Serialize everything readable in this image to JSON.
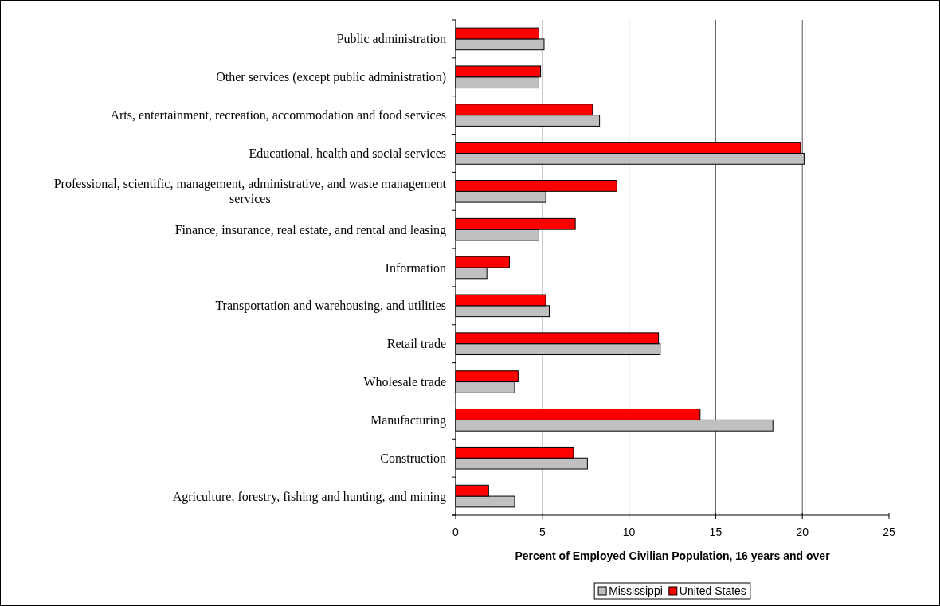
{
  "chart_data": {
    "type": "bar",
    "orientation": "horizontal",
    "categories": [
      "Public administration",
      "Other services (except public administration)",
      "Arts, entertainment, recreation, accommodation and food services",
      "Educational, health and social services",
      "Professional, scientific, management, administrative, and waste management services",
      "Finance, insurance, real estate, and rental and leasing",
      "Information",
      "Transportation and warehousing, and utilities",
      "Retail trade",
      "Wholesale trade",
      "Manufacturing",
      "Construction",
      "Agriculture, forestry, fishing and hunting, and mining"
    ],
    "series": [
      {
        "name": "Mississippi",
        "color": "#c0c0c0",
        "values": [
          5.1,
          4.8,
          8.3,
          20.1,
          5.2,
          4.8,
          1.8,
          5.4,
          11.8,
          3.4,
          18.3,
          7.6,
          3.4
        ]
      },
      {
        "name": "United States",
        "color": "#ff0000",
        "values": [
          4.8,
          4.9,
          7.9,
          19.9,
          9.3,
          6.9,
          3.1,
          5.2,
          11.7,
          3.6,
          14.1,
          6.8,
          1.9
        ]
      }
    ],
    "xlabel": "Percent of Employed Civilian Population, 16 years and over",
    "xlim": [
      0,
      25
    ],
    "xticks": [
      0,
      5,
      10,
      15,
      20,
      25
    ],
    "grid": "x",
    "legend": "bottom"
  }
}
